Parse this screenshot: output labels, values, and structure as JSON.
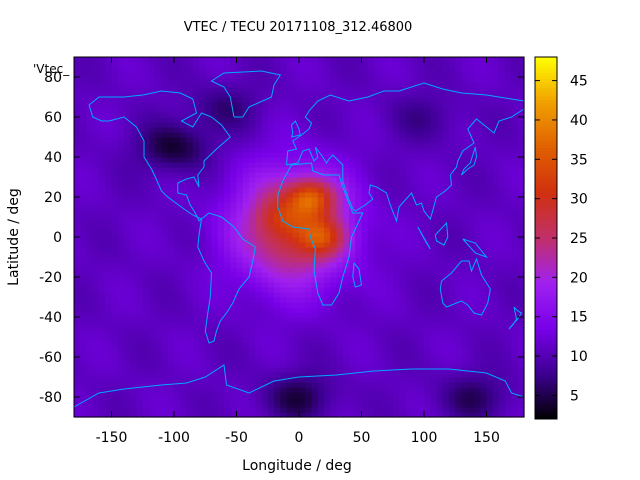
{
  "chart_data": {
    "type": "heatmap",
    "title": "VTEC / TECU 20171108_312.46800",
    "xlabel": "Longitude / deg",
    "ylabel": "Latitude / deg",
    "xlim": [
      -180,
      180
    ],
    "ylim": [
      -90,
      90
    ],
    "xticks": [
      -150,
      -100,
      -50,
      0,
      50,
      100,
      150
    ],
    "yticks": [
      -80,
      -60,
      -40,
      -20,
      0,
      20,
      40,
      60,
      80
    ],
    "corner_label": "'Vtec_",
    "colorbar": {
      "min": 2,
      "max": 48,
      "ticks": [
        5,
        10,
        15,
        20,
        25,
        30,
        35,
        40,
        45
      ],
      "palette": [
        "#000000",
        "#3c0090",
        "#7800e8",
        "#a020f0",
        "#c0306a",
        "#d03010",
        "#e06000",
        "#f0a000",
        "#ffff00"
      ]
    },
    "grid_resolution_deg": [
      5,
      2.5
    ],
    "features": {
      "background_level": 11,
      "crest": {
        "center_lon": -5,
        "center_lat": 5,
        "peak_tec": 30
      },
      "peaks": [
        {
          "lon": 10,
          "lat": 20,
          "tec": 44
        },
        {
          "lon": 20,
          "lat": 0,
          "tec": 40
        },
        {
          "lon": -15,
          "lat": 10,
          "tec": 34
        }
      ],
      "lows": [
        {
          "lon": -100,
          "lat": 45,
          "tec": 4
        },
        {
          "lon": -60,
          "lat": 65,
          "tec": 7
        },
        {
          "lon": 100,
          "lat": 60,
          "tec": 8
        },
        {
          "lon": 0,
          "lat": -80,
          "tec": 5
        },
        {
          "lon": 140,
          "lat": -80,
          "tec": 6
        }
      ]
    },
    "overlay": "coastlines",
    "overlay_color": "#00a8ff"
  }
}
